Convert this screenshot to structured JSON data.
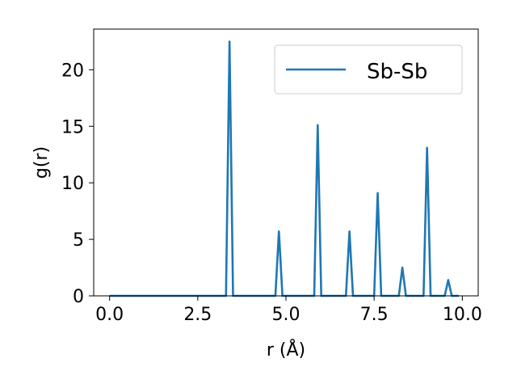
{
  "chart_data": {
    "type": "line",
    "title": "",
    "xlabel": "r (Å)",
    "ylabel": "g(r)",
    "xlim": [
      -0.45,
      10.45
    ],
    "ylim": [
      0,
      23.6
    ],
    "xticks": [
      0.0,
      2.5,
      5.0,
      7.5,
      10.0
    ],
    "xtick_labels": [
      "0.0",
      "2.5",
      "5.0",
      "7.5",
      "10.0"
    ],
    "yticks": [
      0,
      5,
      10,
      15,
      20
    ],
    "ytick_labels": [
      "0",
      "5",
      "10",
      "15",
      "20"
    ],
    "grid": false,
    "legend_position": "top-right",
    "series": [
      {
        "name": "Sb-Sb",
        "color": "#1f77b4",
        "x": [
          0.0,
          3.3,
          3.4,
          3.5,
          4.7,
          4.8,
          4.9,
          5.8,
          5.9,
          6.0,
          6.7,
          6.8,
          6.9,
          7.5,
          7.6,
          7.7,
          8.2,
          8.3,
          8.4,
          8.9,
          9.0,
          9.1,
          9.5,
          9.6,
          9.7,
          9.9
        ],
        "y": [
          0,
          0,
          22.5,
          0,
          0,
          5.7,
          0,
          0,
          15.1,
          0,
          0,
          5.7,
          0,
          0,
          9.1,
          0,
          0,
          2.5,
          0,
          0,
          13.1,
          0,
          0,
          1.4,
          0,
          0
        ]
      }
    ]
  }
}
